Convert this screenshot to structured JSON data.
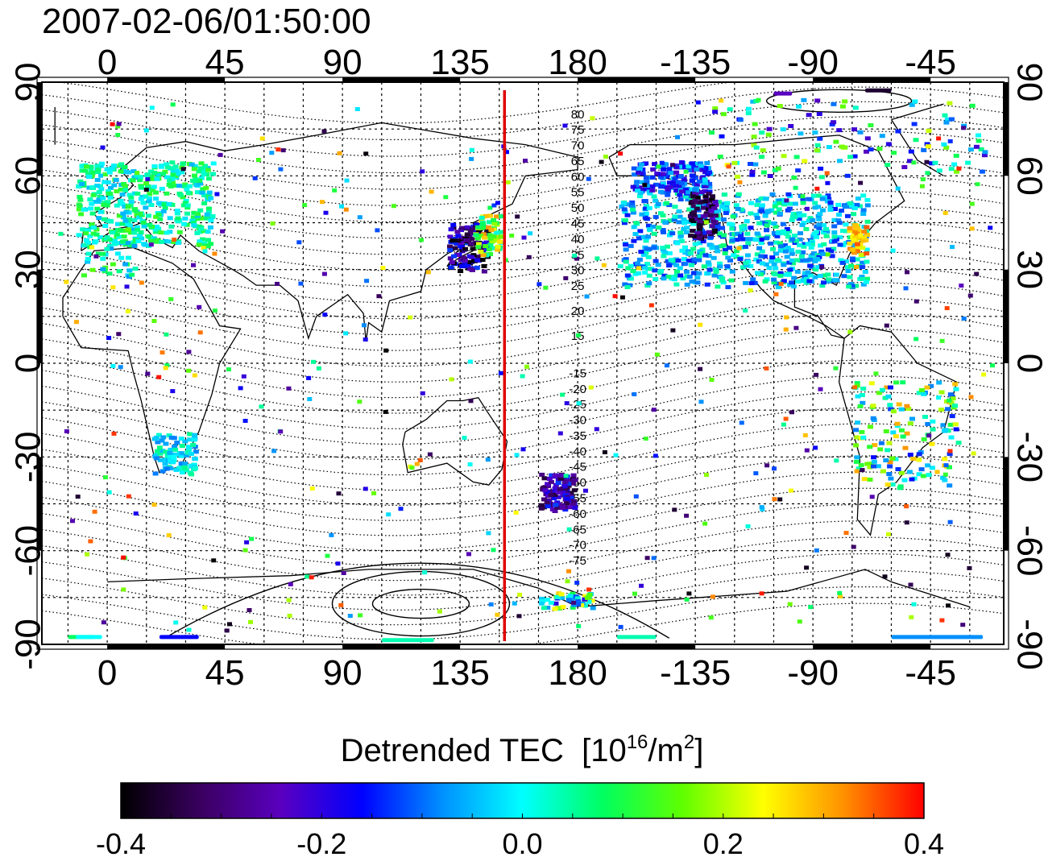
{
  "header": {
    "timestamp": "2007-02-06/01:50:00"
  },
  "map": {
    "projection": "equirectangular",
    "lon_center": 180,
    "lon_range": [
      -25,
      343
    ],
    "lat_range": [
      -90,
      90
    ],
    "top_ticks": [
      "0",
      "45",
      "90",
      "135",
      "180",
      "-135",
      "-90",
      "-45"
    ],
    "bottom_ticks": [
      "0",
      "45",
      "90",
      "135",
      "180",
      "-135",
      "-90",
      "-45"
    ],
    "left_ticks": [
      "90",
      "60",
      "30",
      "0",
      "-30",
      "-60",
      "-90"
    ],
    "right_ticks": [
      "90",
      "60",
      "30",
      "0",
      "-30",
      "-60",
      "-90"
    ],
    "terminator_lon": 152,
    "terminator_color": "#e00000",
    "contour_labels_north": [
      "80",
      "75",
      "70",
      "65",
      "60",
      "55",
      "50",
      "45",
      "40",
      "35",
      "30",
      "25",
      "20",
      "15"
    ],
    "contour_labels_south": [
      "-15",
      "-20",
      "-25",
      "-30",
      "-35",
      "-40",
      "-45",
      "-50",
      "-55",
      "-60",
      "-65",
      "-70",
      "-75"
    ]
  },
  "colorbar": {
    "title": "Detrended TEC",
    "unit_prefix": "[10",
    "unit_exp": "16",
    "unit_mid": "/m",
    "unit_exp2": "2",
    "unit_suffix": "]",
    "min": -0.4,
    "max": 0.4,
    "tick_labels": [
      "-0.4",
      "-0.2",
      "0.0",
      "0.2",
      "0.4"
    ],
    "colors": [
      "#000000",
      "#3a0060",
      "#5a00c0",
      "#0000ff",
      "#0090ff",
      "#00ffff",
      "#00ff60",
      "#60ff00",
      "#ffff00",
      "#ff9000",
      "#ff0000"
    ]
  }
}
